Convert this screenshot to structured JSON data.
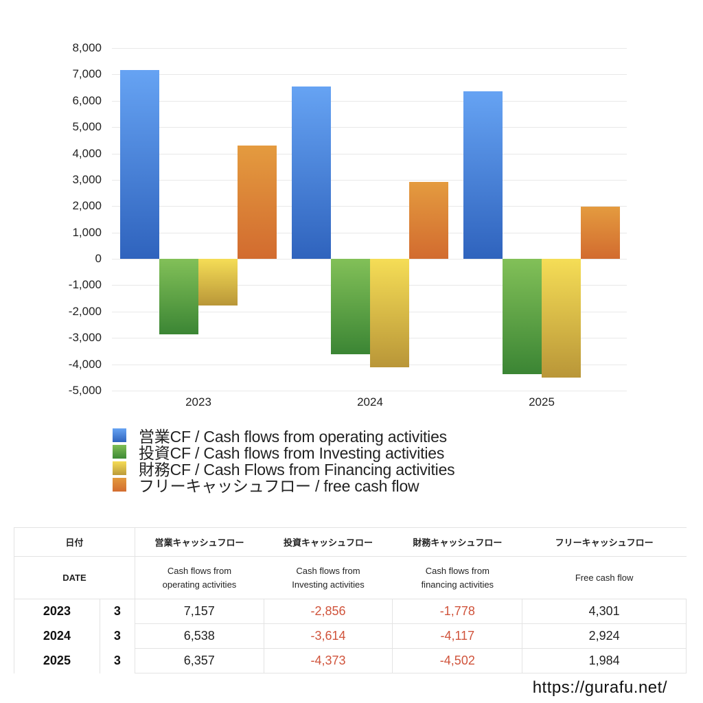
{
  "chart_data": {
    "type": "bar",
    "title": "",
    "xlabel": "",
    "ylabel": "",
    "categories": [
      "2023",
      "2024",
      "2025"
    ],
    "series": [
      {
        "name": "営業CF / Cash flows from operating activities",
        "color": "#3b73cf",
        "values": [
          7157,
          6538,
          6357
        ]
      },
      {
        "name": "投資CF / Cash flows from Investing activities",
        "color": "#4f9a3c",
        "values": [
          -2856,
          -3614,
          -4373
        ]
      },
      {
        "name": "財務CF / Cash Flows from Financing activities",
        "color": "#dcc042",
        "values": [
          -1778,
          -4117,
          -4502
        ]
      },
      {
        "name": "フリーキャッシュフロー / free cash flow",
        "color": "#da7f33",
        "values": [
          4301,
          2924,
          1984
        ]
      }
    ],
    "ylim": [
      -5000,
      8000
    ],
    "yticks": [
      "8,000",
      "7,000",
      "6,000",
      "5,000",
      "4,000",
      "3,000",
      "2,000",
      "1,000",
      "0",
      "-1,000",
      "-2,000",
      "-3,000",
      "-4,000",
      "-5,000"
    ],
    "grid": true,
    "legend_position": "bottom"
  },
  "legend": [
    {
      "label": "営業CF / Cash flows from operating activities",
      "icon": "blue-square"
    },
    {
      "label": "投資CF / Cash flows from Investing activities",
      "icon": "green-square"
    },
    {
      "label": "財務CF / Cash Flows from Financing activities",
      "icon": "yellow-square"
    },
    {
      "label": "フリーキャッシュフロー / free cash flow",
      "icon": "orange-square"
    }
  ],
  "table": {
    "header_jp": [
      "日付",
      "営業キャッシュフロー",
      "投資キャッシュフロー",
      "財務キャッシュフロー",
      "フリーキャッシュフロー"
    ],
    "header_en": {
      "date": "DATE",
      "operating": [
        "Cash flows from",
        "operating activities"
      ],
      "investing": [
        "Cash flows from",
        "Investing activities"
      ],
      "financing": [
        "Cash flows from",
        "financing activities"
      ],
      "free": "Free cash flow"
    },
    "rows": [
      {
        "year": "2023",
        "month": "3",
        "operating": "7,157",
        "investing": "-2,856",
        "financing": "-1,778",
        "free": "4,301"
      },
      {
        "year": "2024",
        "month": "3",
        "operating": "6,538",
        "investing": "-3,614",
        "financing": "-4,117",
        "free": "2,924"
      },
      {
        "year": "2025",
        "month": "3",
        "operating": "6,357",
        "investing": "-4,373",
        "financing": "-4,502",
        "free": "1,984"
      }
    ],
    "negative_color": "#d0533b"
  },
  "footer": {
    "url": "https://gurafu.net/"
  }
}
